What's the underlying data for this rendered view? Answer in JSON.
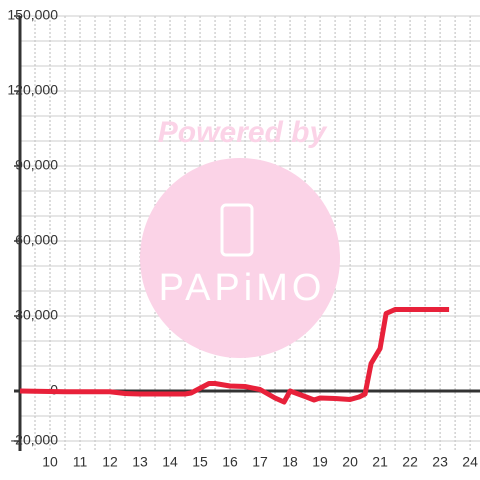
{
  "chart_data": {
    "type": "line",
    "watermark": {
      "top": "Powered by",
      "bottom": "PAPiMO"
    },
    "x": [
      9,
      10.5,
      12,
      12.5,
      13,
      14.5,
      14.7,
      15.3,
      15.5,
      16,
      16.5,
      17,
      17.5,
      17.8,
      18,
      18.5,
      18.8,
      19,
      19.5,
      20,
      20.3,
      20.5,
      20.7,
      21,
      21.2,
      21.5,
      23.3
    ],
    "series": [
      {
        "color": "#e8213a",
        "values": [
          0,
          -300,
          -300,
          -1000,
          -1200,
          -1200,
          -800,
          3000,
          3000,
          2000,
          1800,
          600,
          -2800,
          -4400,
          0,
          -2200,
          -3600,
          -2800,
          -3000,
          -3400,
          -2400,
          -1200,
          11000,
          17000,
          31000,
          32600,
          32600
        ]
      }
    ],
    "xlim": [
      9,
      24.33
    ],
    "xticks": [
      10,
      11,
      12,
      13,
      14,
      15,
      16,
      17,
      18,
      19,
      20,
      21,
      22,
      23,
      24
    ],
    "xgrid": [
      9.5,
      10,
      10.5,
      11,
      11.5,
      12,
      12.5,
      13,
      13.5,
      14,
      14.5,
      15,
      15.5,
      16,
      16.5,
      17,
      17.5,
      18,
      18.5,
      19,
      19.5,
      20,
      20.5,
      21,
      21.5,
      22,
      22.5,
      23,
      23.5,
      24
    ],
    "ylim": [
      -24000,
      150000
    ],
    "yticks": [
      {
        "value": -20000,
        "label": "-20,000"
      },
      0,
      {
        "value": 30000,
        "label": "30,000"
      },
      {
        "value": 60000,
        "label": "60,000"
      },
      {
        "value": 90000,
        "label": "90,000"
      },
      {
        "value": 120000,
        "label": "120,000"
      },
      {
        "value": 150000,
        "label": "150,000"
      }
    ],
    "ygrid": [
      -20000,
      -10000,
      10000,
      20000,
      30000,
      40000,
      50000,
      60000,
      70000,
      80000,
      90000,
      100000,
      110000,
      120000,
      130000,
      140000,
      150000
    ]
  }
}
